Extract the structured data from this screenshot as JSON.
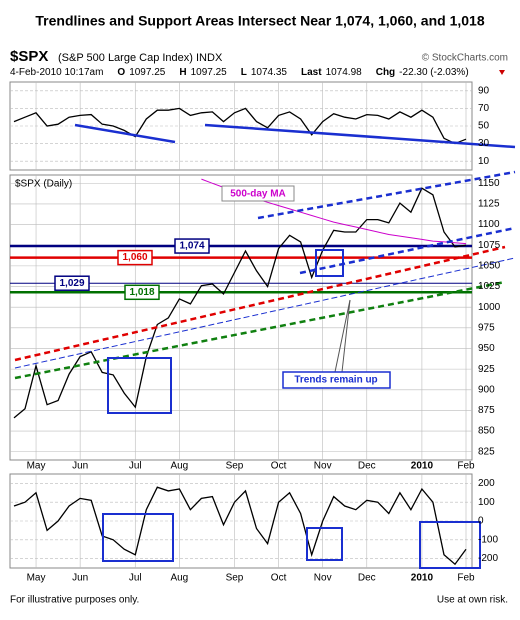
{
  "title": "Trendlines and Support Areas Intersect Near 1,074, 1,060, and 1,018",
  "header": {
    "symbol": "$SPX",
    "name": "(S&P 500 Large Cap Index) INDX",
    "source": "© StockCharts.com",
    "date": "4-Feb-2010 10:17am",
    "fields": [
      {
        "label": "O",
        "value": 1097.25
      },
      {
        "label": "H",
        "value": 1097.25
      },
      {
        "label": "L",
        "value": 1074.35
      },
      {
        "label": "Last",
        "value": 1074.98
      },
      {
        "label": "Chg",
        "value": "-22.30 (-2.03%)"
      }
    ]
  },
  "chart_data": [
    {
      "type": "line",
      "series": [
        {
          "color": "#000000",
          "values": [
            55,
            60,
            65,
            50,
            52,
            60,
            62,
            63,
            52,
            50,
            45,
            38,
            58,
            68,
            68,
            70,
            62,
            65,
            66,
            55,
            65,
            70,
            55,
            48,
            62,
            66,
            58,
            40,
            55,
            64,
            60,
            58,
            63,
            62,
            58,
            66,
            60,
            68,
            60,
            36,
            30,
            35
          ]
        }
      ],
      "ylim": [
        0,
        100
      ],
      "yticks": [
        10,
        30,
        50,
        70,
        90
      ],
      "grid": true
    },
    {
      "type": "line",
      "categories": [
        null,
        null,
        "May",
        null,
        null,
        null,
        "Jun",
        null,
        null,
        null,
        null,
        "Jul",
        null,
        null,
        null,
        "Aug",
        null,
        null,
        null,
        null,
        "Sep",
        null,
        null,
        null,
        "Oct",
        null,
        null,
        null,
        "Nov",
        null,
        null,
        null,
        "Dec",
        null,
        null,
        null,
        null,
        "2010",
        null,
        null,
        null,
        "Feb"
      ],
      "series": [
        {
          "name": "$SPX (Daily)",
          "color": "#000000",
          "values": [
            866,
            877,
            929,
            882,
            887,
            919,
            940,
            946,
            921,
            918,
            896,
            879,
            940,
            979,
            987,
            1010,
            1004,
            1026,
            1028,
            1016,
            1042,
            1068,
            1044,
            1025,
            1071,
            1087,
            1079,
            1036,
            1069,
            1093,
            1091,
            1091,
            1106,
            1106,
            1102,
            1126,
            1115,
            1144,
            1136,
            1091,
            1073,
            1075
          ]
        },
        {
          "name": "500-day MA",
          "color": "#cc00cc",
          "values": [
            null,
            null,
            null,
            null,
            null,
            null,
            null,
            null,
            null,
            null,
            null,
            null,
            null,
            null,
            null,
            null,
            null,
            1155,
            1150,
            1145,
            1140,
            1135,
            1131,
            1127,
            1123,
            1119,
            1115,
            1111,
            1107,
            1103,
            1100,
            1097,
            1094,
            1091,
            1088,
            1086,
            1084,
            1082,
            1080,
            1079,
            1078,
            1077
          ]
        }
      ],
      "levels": [
        {
          "value": 1074,
          "label": "1,074",
          "color": "#000080"
        },
        {
          "value": 1060,
          "label": "1,060",
          "color": "#e00000"
        },
        {
          "value": 1029,
          "label": "1,029",
          "color": "#000080"
        },
        {
          "value": 1018,
          "label": "1,018",
          "color": "#007000"
        }
      ],
      "annotation": "Trends remain up",
      "ylim": [
        815,
        1160
      ],
      "yticks": [
        825,
        850,
        875,
        900,
        925,
        950,
        975,
        1000,
        1025,
        1050,
        1075,
        1100,
        1125,
        1150
      ],
      "grid": true
    },
    {
      "type": "line",
      "series": [
        {
          "color": "#000000",
          "values": [
            80,
            100,
            150,
            -50,
            0,
            80,
            120,
            110,
            -80,
            -100,
            -150,
            -180,
            60,
            180,
            160,
            170,
            60,
            120,
            130,
            -20,
            100,
            160,
            -40,
            -120,
            100,
            150,
            40,
            -180,
            0,
            130,
            80,
            60,
            110,
            100,
            40,
            150,
            60,
            170,
            100,
            -180,
            -230,
            -150
          ]
        }
      ],
      "ylim": [
        -250,
        250
      ],
      "yticks": [
        -200,
        -100,
        0,
        100,
        200
      ],
      "grid": true
    }
  ],
  "footer": {
    "left": "For illustrative purposes only.",
    "right": "Use at own risk."
  }
}
